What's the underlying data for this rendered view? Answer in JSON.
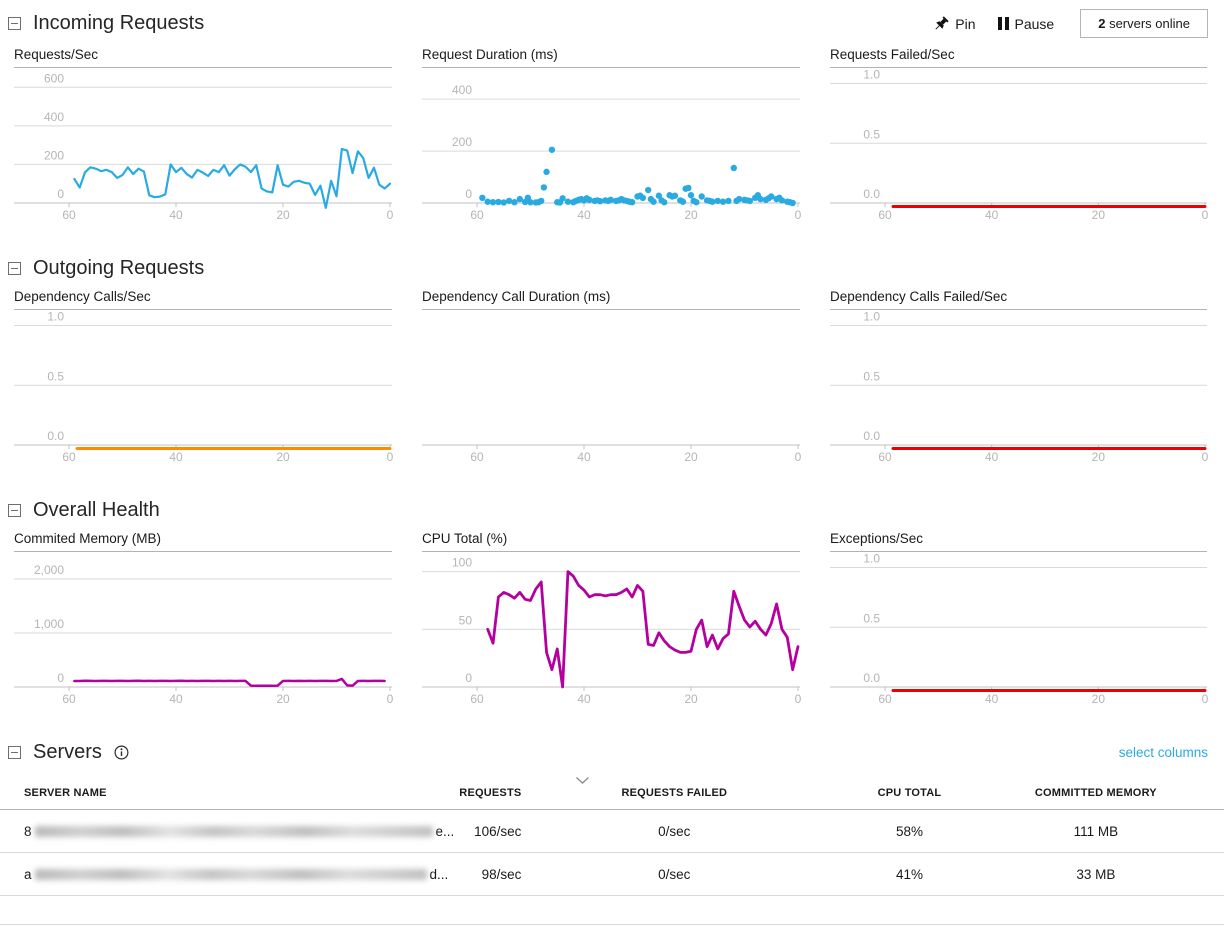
{
  "sections": {
    "incoming": {
      "title": "Incoming Requests"
    },
    "outgoing": {
      "title": "Outgoing Requests"
    },
    "health": {
      "title": "Overall Health"
    },
    "servers": {
      "title": "Servers"
    }
  },
  "toolbar": {
    "pin_label": "Pin",
    "pause_label": "Pause",
    "servers_online_count": "2",
    "servers_online_label": " servers online"
  },
  "links": {
    "select_columns": "select columns"
  },
  "icons": {
    "collapse": "collapse-minus-icon",
    "pin": "pushpin-icon",
    "pause": "pause-icon",
    "info": "info-icon",
    "sort": "chevron-down-icon"
  },
  "colors": {
    "cyan": "#29abe2",
    "red": "#ee0000",
    "orange": "#ff8c00",
    "magenta": "#b4009e",
    "grid": "#d9d9d9",
    "axis": "#c2c2c2",
    "tick_text": "#b5b5b5"
  },
  "chart_data": [
    {
      "type": "line",
      "title": "Requests/Sec",
      "color": "#29abe2",
      "stroke": 2.2,
      "ylim": [
        0,
        600
      ],
      "ytop": 700,
      "grid": true,
      "legend": "none",
      "yticks": [
        {
          "v": 0,
          "label": "0"
        },
        {
          "v": 200,
          "label": "200"
        },
        {
          "v": 400,
          "label": "400"
        },
        {
          "v": 600,
          "label": "600"
        }
      ],
      "xticks": [
        "60",
        "40",
        "20",
        "0"
      ],
      "x": [
        59,
        58,
        57,
        56,
        55,
        54,
        53,
        52,
        51,
        50,
        49,
        48,
        47,
        46,
        45,
        44,
        43,
        42,
        41,
        40,
        39,
        38,
        37,
        36,
        35,
        34,
        33,
        32,
        31,
        30,
        29,
        28,
        27,
        26,
        25,
        24,
        23,
        22,
        21,
        20,
        19,
        18,
        17,
        16,
        15,
        14,
        13,
        12,
        11,
        10,
        9,
        8,
        7,
        6,
        5,
        4,
        3,
        2,
        1,
        0
      ],
      "values": [
        125,
        80,
        160,
        185,
        178,
        165,
        172,
        160,
        130,
        145,
        185,
        150,
        178,
        163,
        40,
        30,
        33,
        45,
        200,
        160,
        182,
        150,
        132,
        172,
        158,
        140,
        172,
        160,
        196,
        142,
        175,
        200,
        188,
        160,
        196,
        75,
        60,
        55,
        196,
        95,
        85,
        110,
        115,
        105,
        100,
        42,
        90,
        -25,
        115,
        35,
        280,
        272,
        155,
        268,
        233,
        130,
        183,
        95,
        75,
        100
      ]
    },
    {
      "type": "scatter",
      "title": "Request Duration (ms)",
      "color": "#29abe2",
      "radius": 3.2,
      "ylim": [
        0,
        400
      ],
      "ytop": 520,
      "grid": true,
      "legend": "none",
      "yticks": [
        {
          "v": 0,
          "label": "0"
        },
        {
          "v": 200,
          "label": "200"
        },
        {
          "v": 400,
          "label": "400"
        }
      ],
      "xticks": [
        "60",
        "40",
        "20",
        "0"
      ],
      "x": [
        59,
        58,
        57,
        56,
        55,
        54,
        53,
        52,
        51,
        50.5,
        50,
        49,
        48.5,
        48,
        47.5,
        47,
        46,
        45,
        44.5,
        44,
        43,
        42,
        41.5,
        41,
        40.5,
        40,
        39.5,
        39,
        38,
        37.5,
        37,
        36,
        35.5,
        35,
        34,
        33.5,
        33,
        32.5,
        32,
        31.5,
        31,
        30,
        29.5,
        29,
        28,
        27.5,
        27,
        26,
        25.5,
        25,
        24,
        23.5,
        23,
        22,
        21.5,
        21,
        20.5,
        20,
        19.5,
        19,
        18,
        17,
        16.5,
        16,
        15,
        14,
        13,
        12,
        11.5,
        11,
        10,
        9.5,
        9,
        8,
        7.5,
        7,
        6,
        5.5,
        5,
        4,
        3.5,
        3,
        2,
        1.5,
        1
      ],
      "values": [
        20,
        5,
        3,
        4,
        2,
        8,
        3,
        15,
        4,
        20,
        3,
        2,
        3,
        8,
        60,
        120,
        205,
        3,
        2,
        18,
        5,
        3,
        8,
        12,
        15,
        10,
        18,
        12,
        8,
        10,
        7,
        10,
        8,
        12,
        8,
        10,
        15,
        10,
        8,
        5,
        3,
        25,
        28,
        20,
        50,
        15,
        5,
        28,
        10,
        3,
        30,
        25,
        28,
        10,
        5,
        55,
        58,
        30,
        8,
        3,
        25,
        10,
        8,
        5,
        8,
        5,
        8,
        135,
        8,
        15,
        12,
        10,
        8,
        20,
        30,
        15,
        12,
        18,
        25,
        15,
        20,
        10,
        5,
        3,
        0
      ]
    },
    {
      "type": "line",
      "title": "Requests Failed/Sec",
      "color": "#ee0000",
      "stroke": 3,
      "ylim": [
        0,
        1
      ],
      "ytop": 1.13,
      "grid": true,
      "legend": "none",
      "yticks": [
        {
          "v": 0,
          "label": "0.0"
        },
        {
          "v": 0.5,
          "label": "0.5"
        },
        {
          "v": 1,
          "label": "1.0"
        }
      ],
      "xticks": [
        "60",
        "40",
        "20",
        "0"
      ],
      "x": [
        58.5,
        0
      ],
      "values": [
        0,
        0
      ]
    },
    {
      "type": "line",
      "title": "Dependency Calls/Sec",
      "color": "#ff8c00",
      "stroke": 3,
      "ylim": [
        0,
        1
      ],
      "ytop": 1.13,
      "grid": true,
      "legend": "none",
      "yticks": [
        {
          "v": 0,
          "label": "0.0"
        },
        {
          "v": 0.5,
          "label": "0.5"
        },
        {
          "v": 1,
          "label": "1.0"
        }
      ],
      "xticks": [
        "60",
        "40",
        "20",
        "0"
      ],
      "x": [
        58.5,
        0
      ],
      "values": [
        0,
        0
      ]
    },
    {
      "type": "scatter",
      "title": "Dependency Call Duration (ms)",
      "color": "#29abe2",
      "radius": 3.2,
      "ylim": [
        0,
        0
      ],
      "ytop": 1,
      "grid": false,
      "legend": "none",
      "yticks": [],
      "xticks": [
        "60",
        "40",
        "20",
        "0"
      ],
      "x": [],
      "values": []
    },
    {
      "type": "line",
      "title": "Dependency Calls Failed/Sec",
      "color": "#ee0000",
      "stroke": 3,
      "ylim": [
        0,
        1
      ],
      "ytop": 1.13,
      "grid": true,
      "legend": "none",
      "yticks": [
        {
          "v": 0,
          "label": "0.0"
        },
        {
          "v": 0.5,
          "label": "0.5"
        },
        {
          "v": 1,
          "label": "1.0"
        }
      ],
      "xticks": [
        "60",
        "40",
        "20",
        "0"
      ],
      "x": [
        58.5,
        0
      ],
      "values": [
        0,
        0
      ]
    },
    {
      "type": "line",
      "title": "Commited Memory (MB)",
      "color": "#b4009e",
      "stroke": 2.5,
      "ylim": [
        0,
        2000
      ],
      "ytop": 2500,
      "grid": true,
      "legend": "none",
      "yticks": [
        {
          "v": 0,
          "label": "0"
        },
        {
          "v": 1000,
          "label": "1,000"
        },
        {
          "v": 2000,
          "label": "2,000"
        }
      ],
      "xticks": [
        "60",
        "40",
        "20",
        "0"
      ],
      "x": [
        59,
        58,
        57,
        56,
        55,
        54,
        53,
        52,
        51,
        50,
        49,
        48,
        47,
        46,
        45,
        44,
        43,
        42,
        41,
        40,
        39,
        38,
        37,
        36,
        35,
        34,
        33,
        32,
        31,
        30,
        29,
        28,
        27,
        26,
        25,
        24,
        23,
        22,
        21,
        20,
        19,
        18,
        17,
        16,
        15,
        14,
        13,
        12,
        11,
        10,
        9,
        8,
        7,
        6,
        5,
        4,
        3,
        2,
        1
      ],
      "values": [
        110,
        112,
        115,
        113,
        112,
        114,
        113,
        112,
        113,
        114,
        112,
        113,
        115,
        112,
        113,
        112,
        114,
        113,
        112,
        113,
        115,
        112,
        113,
        112,
        113,
        114,
        112,
        113,
        112,
        113,
        112,
        114,
        113,
        25,
        22,
        24,
        23,
        22,
        25,
        112,
        113,
        112,
        114,
        112,
        113,
        112,
        113,
        114,
        112,
        113,
        150,
        30,
        25,
        112,
        113,
        112,
        114,
        113,
        112
      ]
    },
    {
      "type": "line",
      "title": "CPU Total (%)",
      "color": "#b4009e",
      "stroke": 2.8,
      "ylim": [
        0,
        100
      ],
      "ytop": 117,
      "grid": true,
      "legend": "none",
      "yticks": [
        {
          "v": 0,
          "label": "0"
        },
        {
          "v": 50,
          "label": "50"
        },
        {
          "v": 100,
          "label": "100"
        }
      ],
      "xticks": [
        "60",
        "40",
        "20",
        "0"
      ],
      "x": [
        58,
        57,
        56,
        55,
        54,
        53,
        52,
        51,
        50,
        49,
        48,
        47,
        46,
        45,
        44,
        43,
        42,
        41,
        40,
        39,
        38,
        37,
        36,
        35,
        34,
        33,
        32,
        31,
        30,
        29,
        28,
        27,
        26,
        25,
        24,
        23,
        22,
        21,
        20,
        19,
        18,
        17,
        16,
        15,
        14,
        13,
        12,
        11,
        10,
        9,
        8,
        7,
        6,
        5,
        4,
        3,
        2,
        1,
        0
      ],
      "values": [
        50,
        38,
        78,
        82,
        80,
        77,
        82,
        76,
        75,
        85,
        91,
        30,
        15,
        33,
        0,
        100,
        96,
        88,
        84,
        78,
        80,
        80,
        79,
        80,
        80,
        82,
        85,
        78,
        88,
        83,
        37,
        36,
        47,
        40,
        35,
        32,
        30,
        30,
        31,
        50,
        58,
        35,
        45,
        33,
        42,
        46,
        83,
        70,
        58,
        52,
        57,
        50,
        45,
        55,
        72,
        50,
        43,
        15,
        35
      ]
    },
    {
      "type": "line",
      "title": "Exceptions/Sec",
      "color": "#ee0000",
      "stroke": 3,
      "ylim": [
        0,
        1
      ],
      "ytop": 1.13,
      "grid": true,
      "legend": "none",
      "yticks": [
        {
          "v": 0,
          "label": "0.0"
        },
        {
          "v": 0.5,
          "label": "0.5"
        },
        {
          "v": 1,
          "label": "1.0"
        }
      ],
      "xticks": [
        "60",
        "40",
        "20",
        "0"
      ],
      "x": [
        58.5,
        0
      ],
      "values": [
        0,
        0
      ]
    }
  ],
  "table": {
    "columns": [
      {
        "label": "SERVER NAME"
      },
      {
        "label": "REQUESTS"
      },
      {
        "label": "REQUESTS FAILED"
      },
      {
        "label": "CPU TOTAL"
      },
      {
        "label": "COMMITTED MEMORY"
      }
    ],
    "rows": [
      {
        "name_prefix": "8",
        "name_suffix": "e...",
        "requests": "106/sec",
        "requests_failed": "0/sec",
        "cpu_total": "58%",
        "committed_memory": "111 MB"
      },
      {
        "name_prefix": "a",
        "name_suffix": "d...",
        "requests": "98/sec",
        "requests_failed": "0/sec",
        "cpu_total": "41%",
        "committed_memory": "33 MB"
      }
    ]
  }
}
